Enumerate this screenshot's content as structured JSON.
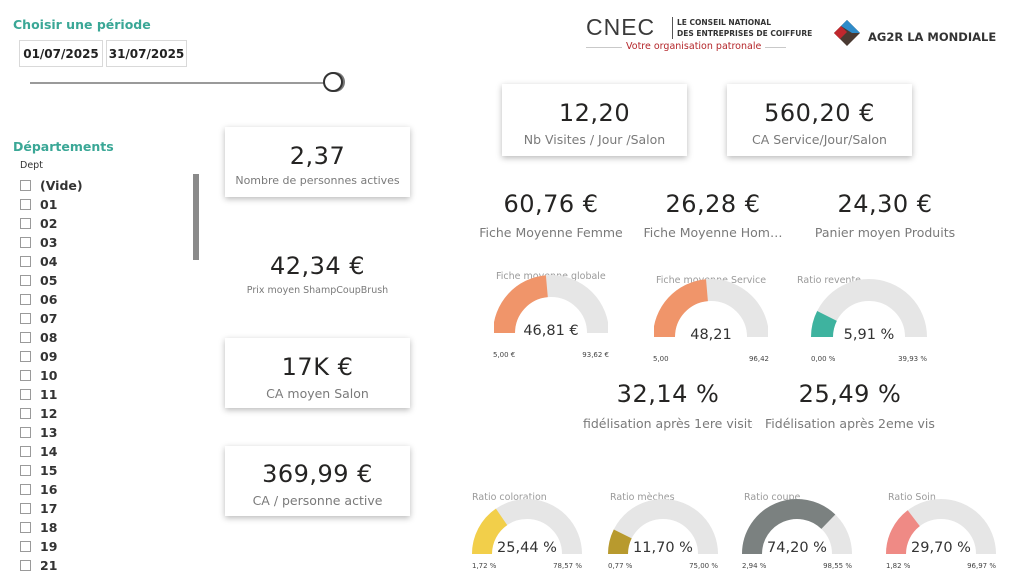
{
  "period": {
    "title": "Choisir une période",
    "start_date": "01/07/2025",
    "end_date": "31/07/2025"
  },
  "logos": {
    "cnec_mark": "CNEC",
    "cnec_line1": "LE CONSEIL NATIONAL",
    "cnec_line2": "DES ENTREPRISES DE COIFFURE",
    "cnec_tagline": "Votre organisation patronale",
    "ag2r_name": "AG2R LA MONDIALE"
  },
  "departments": {
    "title": "Départements",
    "field_label": "Dept",
    "items": [
      "(Vide)",
      "01",
      "02",
      "03",
      "04",
      "05",
      "06",
      "07",
      "08",
      "09",
      "10",
      "11",
      "12",
      "13",
      "14",
      "15",
      "16",
      "17",
      "18",
      "19",
      "21"
    ]
  },
  "kpis_left": {
    "personnes_actives": {
      "value": "2,37",
      "label": "Nombre de personnes actives"
    },
    "prix_moyen": {
      "value": "42,34 €",
      "label": "Prix moyen ShampCoupBrush"
    },
    "ca_moyen_salon": {
      "value": "17K €",
      "label": "CA moyen Salon"
    },
    "ca_personne": {
      "value": "369,99 €",
      "label": "CA / personne active"
    }
  },
  "kpis_top": {
    "visites": {
      "value": "12,20",
      "label": "Nb Visites / Jour /Salon"
    },
    "ca_service": {
      "value": "560,20 €",
      "label": "CA Service/Jour/Salon"
    }
  },
  "kpis_mid": {
    "fiche_femme": {
      "value": "60,76 €",
      "label": "Fiche Moyenne Femme"
    },
    "fiche_homme": {
      "value": "26,28 €",
      "label": "Fiche Moyenne Hom…"
    },
    "panier": {
      "value": "24,30 €",
      "label": "Panier moyen Produits"
    },
    "fidel1": {
      "value": "32,14 %",
      "label": "fidélisation après 1ere visite"
    },
    "fidel2": {
      "value": "25,49 %",
      "label": "Fidélisation après 2eme vis…"
    }
  },
  "gauges": {
    "fiche_globale": {
      "title": "Fiche moyenne globale",
      "value_label": "46,81 €",
      "min_label": "5,00 €",
      "max_label": "93,62 €",
      "min": 5.0,
      "max": 93.62,
      "value": 46.81,
      "color": "#f0956a"
    },
    "fiche_service": {
      "title": "Fiche moyenne Service",
      "value_label": "48,21",
      "min_label": "5,00",
      "max_label": "96,42",
      "min": 5.0,
      "max": 96.42,
      "value": 48.21,
      "color": "#f0956a"
    },
    "ratio_revente": {
      "title": "Ratio revente",
      "value_label": "5,91 %",
      "min_label": "0,00 %",
      "max_label": "39,93 %",
      "min": 0.0,
      "max": 39.93,
      "value": 5.91,
      "color": "#3eb39f"
    },
    "ratio_coloration": {
      "title": "Ratio coloration",
      "value_label": "25,44 %",
      "min_label": "1,72 %",
      "max_label": "78,57 %",
      "min": 1.72,
      "max": 78.57,
      "value": 25.44,
      "color": "#f2cf4a"
    },
    "ratio_meches": {
      "title": "Ratio mèches",
      "value_label": "11,70 %",
      "min_label": "0,77 %",
      "max_label": "75,00 %",
      "min": 0.77,
      "max": 75.0,
      "value": 11.7,
      "color": "#b89a2e"
    },
    "ratio_coupe": {
      "title": "Ratio coupe",
      "value_label": "74,20 %",
      "min_label": "2,94 %",
      "max_label": "98,55 %",
      "min": 2.94,
      "max": 98.55,
      "value": 74.2,
      "color": "#7b8180"
    },
    "ratio_soin": {
      "title": "Ratio Soin",
      "value_label": "29,70 %",
      "min_label": "1,82 %",
      "max_label": "96,97 %",
      "min": 1.82,
      "max": 96.97,
      "value": 29.7,
      "color": "#ef8a85"
    }
  },
  "colors": {
    "accent": "#3aa796",
    "track": "#e6e6e6",
    "ag2r_red": "#c0272d",
    "ag2r_blue": "#2e8bc9",
    "ag2r_dark": "#4a3a32"
  }
}
